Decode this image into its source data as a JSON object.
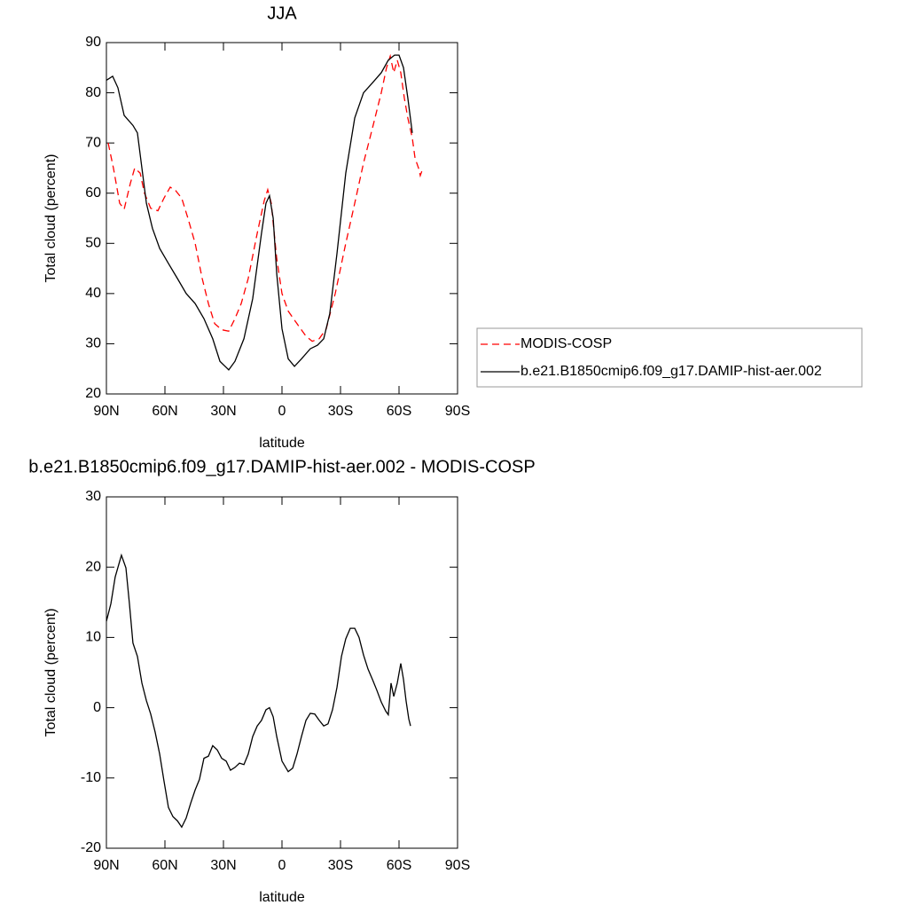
{
  "chart_data": [
    {
      "type": "line",
      "title": "JJA",
      "x_label": "latitude",
      "y_label": "Total cloud (percent)",
      "xlim": [
        90,
        -90
      ],
      "ylim": [
        20,
        90
      ],
      "xticks": [
        {
          "value": 90,
          "label": "90N"
        },
        {
          "value": 60,
          "label": "60N"
        },
        {
          "value": 30,
          "label": "30N"
        },
        0,
        {
          "value": -30,
          "label": "30S"
        },
        {
          "value": -60,
          "label": "60S"
        },
        {
          "value": -90,
          "label": "90S"
        }
      ],
      "yticks": [
        20,
        30,
        40,
        50,
        60,
        70,
        80,
        90
      ],
      "legend": "right",
      "series": [
        {
          "name": "MODIS-COSP",
          "color": "#ff0000",
          "dash": "dashed",
          "x": [
            89.1,
            86.4,
            83.2,
            80.9,
            77.7,
            75.5,
            72.7,
            70.5,
            67.3,
            63.6,
            60.5,
            57.3,
            54.5,
            51.4,
            48.2,
            44.5,
            40.9,
            37.7,
            34.5,
            30.9,
            27.3,
            24.1,
            20.9,
            17.3,
            12.7,
            9.1,
            7.3,
            5.5,
            2.7,
            0,
            -3.2,
            -7.7,
            -12.3,
            -15.5,
            -19.1,
            -22.7,
            -27.3,
            -32.7,
            -37.3,
            -41.8,
            -46.4,
            -50.9,
            -53.6,
            -55.5,
            -57.3,
            -59.1,
            -60.9,
            -62.7,
            -64.5,
            -66.8,
            -68.2,
            -70,
            -70.9,
            -71.8
          ],
          "values": [
            70,
            65,
            58,
            56.8,
            62,
            65,
            64,
            60,
            57,
            56.5,
            59,
            61.2,
            60.5,
            59,
            55,
            50,
            43,
            38,
            34,
            32.8,
            32.5,
            35,
            38,
            43,
            52,
            58.5,
            60.7,
            58,
            47,
            40,
            36.5,
            34,
            31.5,
            30.5,
            31,
            33,
            40,
            50,
            58,
            66,
            73,
            80,
            85,
            87.3,
            84,
            86.5,
            84,
            79,
            75,
            71,
            67,
            65,
            63.5,
            64.5
          ]
        },
        {
          "name": "b.e21.B1850cmip6.f09_g17.DAMIP-hist-aer.002",
          "color": "#000000",
          "dash": "solid",
          "x": [
            90,
            86.8,
            84.1,
            80.9,
            76.4,
            74.1,
            71.8,
            69.5,
            66.4,
            62.7,
            58.2,
            53.6,
            49.1,
            44.5,
            40,
            35.5,
            31.8,
            27.3,
            24.1,
            19.5,
            15,
            10.5,
            8.2,
            6.4,
            4.5,
            2.7,
            0,
            -3.2,
            -6.4,
            -10,
            -14.5,
            -18.2,
            -21.4,
            -24.5,
            -28.2,
            -32.7,
            -37.3,
            -41.8,
            -46.4,
            -50.9,
            -54.5,
            -57.7,
            -60,
            -62.3,
            -64.5,
            -66.8
          ],
          "values": [
            82.5,
            83.3,
            81,
            75.5,
            73.5,
            72,
            65,
            58,
            53,
            49,
            46,
            43,
            40,
            38,
            35,
            31,
            26.5,
            24.8,
            26.5,
            31,
            39,
            52,
            58,
            59.5,
            55,
            44,
            33,
            27,
            25.5,
            27,
            29,
            29.7,
            31,
            36,
            48,
            64,
            75,
            80,
            82,
            84,
            86.5,
            87.5,
            87.5,
            85,
            79,
            72
          ]
        }
      ]
    },
    {
      "type": "line",
      "title": "b.e21.B1850cmip6.f09_g17.DAMIP-hist-aer.002 - MODIS-COSP",
      "x_label": "latitude",
      "y_label": "Total cloud (percent)",
      "xlim": [
        90,
        -90
      ],
      "ylim": [
        -20,
        30
      ],
      "xticks": [
        {
          "value": 90,
          "label": "90N"
        },
        {
          "value": 60,
          "label": "60N"
        },
        {
          "value": 30,
          "label": "30N"
        },
        0,
        {
          "value": -30,
          "label": "30S"
        },
        {
          "value": -60,
          "label": "60S"
        },
        {
          "value": -90,
          "label": "90S"
        }
      ],
      "yticks": [
        -20,
        -10,
        0,
        10,
        20,
        30
      ],
      "series": [
        {
          "color": "#000000",
          "dash": "solid",
          "x": [
            90,
            87.7,
            85.5,
            82.3,
            80,
            78.2,
            76.4,
            74.1,
            71.8,
            69.5,
            67.3,
            65,
            62.7,
            60.5,
            58.2,
            55.9,
            53.6,
            51.4,
            49.1,
            46.8,
            44.5,
            42.3,
            40,
            37.7,
            35.5,
            33.2,
            30.9,
            28.6,
            26.4,
            24.1,
            21.8,
            19.5,
            17.3,
            15,
            12.7,
            10.5,
            8.2,
            6.4,
            4.5,
            2.7,
            0,
            -3.2,
            -5.5,
            -7.7,
            -10,
            -12.3,
            -14.5,
            -16.8,
            -19.1,
            -21.4,
            -23.6,
            -25.9,
            -28.2,
            -30.5,
            -32.7,
            -35,
            -37.3,
            -39.5,
            -41.8,
            -44.1,
            -46.4,
            -48.6,
            -50.9,
            -53.2,
            -54.5,
            -55.9,
            -57.3,
            -59.1,
            -60.9,
            -62.3,
            -63.6,
            -65,
            -65.9
          ],
          "values": [
            12.3,
            14.8,
            18.6,
            21.7,
            19.9,
            14.8,
            9.2,
            7.3,
            3.5,
            1,
            -0.9,
            -3.5,
            -6.6,
            -10.4,
            -14.2,
            -15.5,
            -16.1,
            -17,
            -15.7,
            -13.6,
            -11.7,
            -10.2,
            -7.2,
            -6.9,
            -5.4,
            -6,
            -7.2,
            -7.6,
            -8.9,
            -8.5,
            -7.9,
            -8.1,
            -6.6,
            -4.1,
            -2.6,
            -1.8,
            -0.3,
            0,
            -1.3,
            -4.1,
            -7.6,
            -9.1,
            -8.6,
            -6.6,
            -4.1,
            -1.8,
            -0.8,
            -0.9,
            -1.8,
            -2.6,
            -2.3,
            -0.3,
            2.9,
            7.3,
            9.8,
            11.3,
            11.3,
            10,
            7.5,
            5.5,
            4,
            2.5,
            0.8,
            -0.5,
            -1,
            3.5,
            1.6,
            3.5,
            6.3,
            4,
            1,
            -1.6,
            -2.6
          ]
        }
      ]
    }
  ]
}
